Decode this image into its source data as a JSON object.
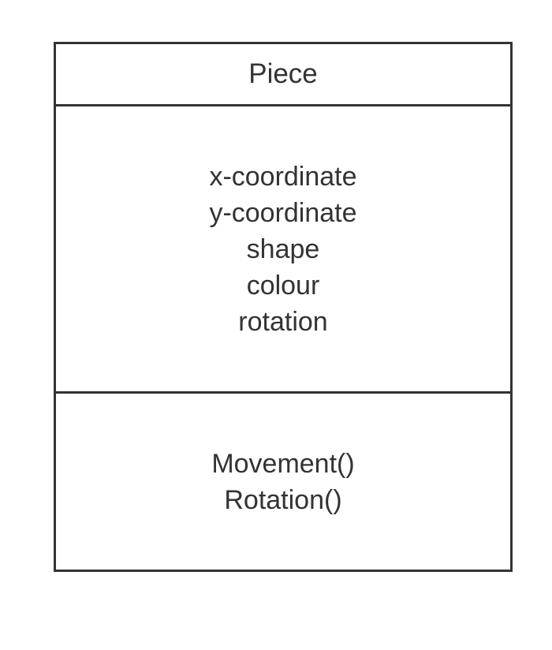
{
  "uml_class": {
    "name": "Piece",
    "attributes": [
      "x-coordinate",
      "y-coordinate",
      "shape",
      "colour",
      "rotation"
    ],
    "methods": [
      "Movement()",
      "Rotation()"
    ]
  },
  "colors": {
    "stroke": "#333333",
    "text": "#333333",
    "background": "#ffffff"
  }
}
